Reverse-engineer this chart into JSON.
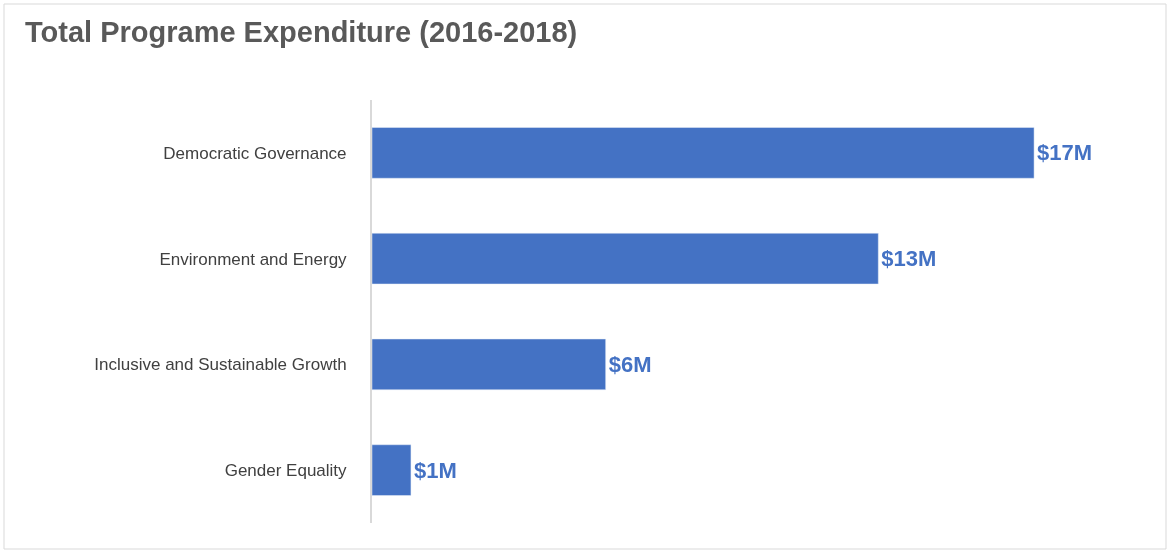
{
  "chart_data": {
    "type": "bar",
    "orientation": "horizontal",
    "title": "Total Programe Expenditure (2016-2018)",
    "categories": [
      "Democratic Governance",
      "Environment and Energy",
      "Inclusive and Sustainable Growth",
      "Gender Equality"
    ],
    "values": [
      17,
      13,
      6,
      1
    ],
    "value_labels": [
      "$17M",
      "$13M",
      "$6M",
      "$1M"
    ],
    "color": "#4472c4"
  }
}
